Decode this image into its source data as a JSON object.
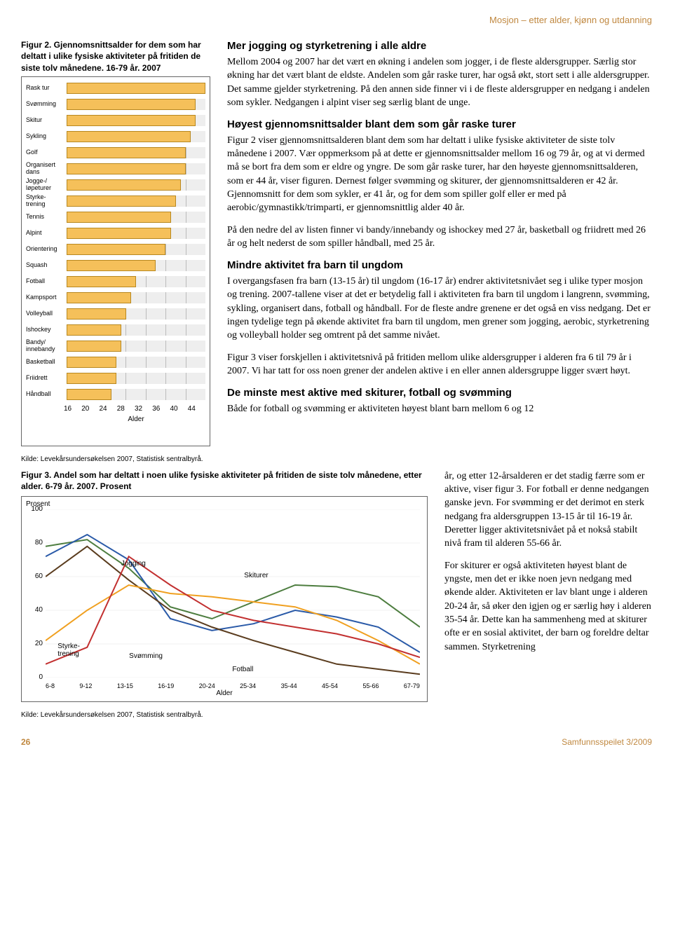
{
  "header": {
    "section_title": "Mosjon – etter alder, kjønn og utdanning"
  },
  "figure2": {
    "caption_bold": "Figur 2. Gjennomsnittsalder for dem som har deltatt i ulike fysiske aktiviteter på fritiden de siste tolv månedene. 16-79 år. 2007",
    "type": "bar-horizontal",
    "x_label": "Alder",
    "x_min": 16,
    "x_max": 44,
    "x_step": 4,
    "x_ticks": [
      "16",
      "20",
      "24",
      "28",
      "32",
      "36",
      "40",
      "44"
    ],
    "bar_color": "#f5c05a",
    "bar_border": "#b88820",
    "grid_color": "#bbbbbb",
    "categories": [
      {
        "label": "Rask tur",
        "value": 44
      },
      {
        "label": "Svømming",
        "value": 42
      },
      {
        "label": "Skitur",
        "value": 42
      },
      {
        "label": "Sykling",
        "value": 41
      },
      {
        "label": "Golf",
        "value": 40
      },
      {
        "label": "Organisert dans",
        "value": 40
      },
      {
        "label": "Jogge-/ løpeturer",
        "value": 39
      },
      {
        "label": "Styrke- trening",
        "value": 38
      },
      {
        "label": "Tennis",
        "value": 37
      },
      {
        "label": "Alpint",
        "value": 37
      },
      {
        "label": "Orientering",
        "value": 36
      },
      {
        "label": "Squash",
        "value": 34
      },
      {
        "label": "Fotball",
        "value": 30
      },
      {
        "label": "Kampsport",
        "value": 29
      },
      {
        "label": "Volleyball",
        "value": 28
      },
      {
        "label": "Ishockey",
        "value": 27
      },
      {
        "label": "Bandy/ innebandy",
        "value": 27
      },
      {
        "label": "Basketball",
        "value": 26
      },
      {
        "label": "Friidrett",
        "value": 26
      },
      {
        "label": "Håndball",
        "value": 25
      }
    ],
    "source": "Kilde: Levekårsundersøkelsen 2007, Statistisk sentralbyrå."
  },
  "body": {
    "s1_head": "Mer jogging og styrketrening i alle aldre",
    "s1_p": "Mellom 2004 og 2007 har det vært en økning i andelen som jogger, i de fleste aldersgrupper. Særlig stor økning har det vært blant de eldste. Andelen som går raske turer, har også økt, stort sett i alle aldersgrupper. Det samme gjelder styrketrening. På den annen side finner vi i de fleste aldersgrupper en nedgang i andelen som sykler. Nedgangen i alpint viser seg særlig blant de unge.",
    "s2_head": "Høyest gjennomsnittsalder blant dem som går raske turer",
    "s2_p1": "Figur 2 viser gjennomsnittsalderen blant dem som har deltatt i ulike fysiske aktiviteter de siste tolv månedene i 2007. Vær oppmerksom på at dette er gjennomsnittsalder mellom 16 og 79 år, og at vi dermed må se bort fra dem som er eldre og yngre. De som går raske turer, har den høyeste gjennomsnittsalderen, som er 44 år, viser figuren. Dernest følger svømming og skiturer, der gjennomsnittsalderen er 42 år. Gjennomsnitt for dem som sykler, er 41 år, og for dem som spiller golf eller er med på aerobic/gymnastikk/trimparti, er gjennomsnittlig alder 40 år.",
    "s2_p2": "På den nedre del av listen finner vi bandy/innebandy og ishockey med 27 år, basketball og friidrett med 26 år og helt nederst de som spiller håndball, med 25 år.",
    "s3_head": "Mindre aktivitet fra barn til ungdom",
    "s3_p1": "I overgangsfasen fra barn (13-15 år) til ungdom (16-17 år) endrer aktivitetsnivået seg i ulike typer mosjon og trening. 2007-tallene viser at det er betydelig fall i aktiviteten fra barn til ungdom i langrenn, svømming, sykling, organisert dans, fotball og håndball. For de fleste andre grenene er det også en viss nedgang. Det er ingen tydelige tegn på økende aktivitet fra barn til ungdom, men grener som jogging, aerobic, styrketrening og volleyball holder seg omtrent på det samme nivået.",
    "s3_p2": "Figur 3 viser forskjellen i aktivitetsnivå på fritiden mellom ulike aldersgrupper i alderen fra 6 til 79 år i 2007. Vi har tatt for oss noen grener der andelen aktive i en eller annen aldersgruppe ligger svært høyt.",
    "s4_head": "De minste mest aktive med skiturer, fotball og svømming",
    "s4_p1": "Både for fotball og svømming er aktiviteten høyest blant barn mellom 6 og 12",
    "s4_p2": "år, og etter 12-årsalderen er det stadig færre som er aktive, viser figur 3. For fotball er denne nedgangen ganske jevn. For svømming er det derimot en sterk nedgang fra aldersgruppen 13-15 år til 16-19 år. Deretter ligger aktivitetsnivået på et nokså stabilt nivå fram til alderen 55-66 år.",
    "s4_p3": "For skiturer er også aktiviteten høyest blant de yngste, men det er ikke noen jevn nedgang med økende alder. Aktiviteten er lav blant unge i alderen 20-24 år, så øker den igjen og er særlig høy i alderen 35-54 år. Dette kan ha sammenheng med at skiturer ofte er en sosial aktivitet, der barn og foreldre deltar sammen. Styrketrening"
  },
  "figure3": {
    "caption_bold": "Figur 3. Andel som har deltatt i noen ulike fysiske aktiviteter på fritiden de siste tolv månedene, etter alder. 6-79 år. 2007. Prosent",
    "type": "line",
    "y_title": "Prosent",
    "y_ticks": [
      0,
      20,
      40,
      60,
      80,
      100
    ],
    "x_label": "Alder",
    "x_categories": [
      "6-8",
      "9-12",
      "13-15",
      "16-19",
      "20-24",
      "25-34",
      "35-44",
      "45-54",
      "55-66",
      "67-79"
    ],
    "background_color": "#ffffff",
    "grid_color": "#cccccc",
    "series": [
      {
        "name": "Skiturer",
        "label": "Skiturer",
        "color": "#4d7d3f",
        "width": 2,
        "values": [
          78,
          82,
          65,
          42,
          35,
          45,
          55,
          54,
          48,
          30
        ]
      },
      {
        "name": "Svømming",
        "label": "Svømming",
        "color": "#2a5aa8",
        "width": 2,
        "values": [
          72,
          85,
          70,
          35,
          28,
          32,
          40,
          36,
          30,
          15
        ]
      },
      {
        "name": "Fotball",
        "label": "Fotball",
        "color": "#5a3c1e",
        "width": 2,
        "values": [
          60,
          78,
          58,
          40,
          30,
          22,
          15,
          8,
          5,
          2
        ]
      },
      {
        "name": "Jogging",
        "label": "Jogging",
        "color": "#f0a020",
        "width": 2,
        "values": [
          22,
          40,
          55,
          50,
          48,
          45,
          42,
          34,
          22,
          8
        ]
      },
      {
        "name": "Styrketrening",
        "label": "Styrke-\ntrening",
        "color": "#c23030",
        "width": 2,
        "values": [
          8,
          18,
          72,
          55,
          40,
          34,
          30,
          26,
          20,
          12
        ]
      }
    ],
    "series_label_positions": {
      "Jogging": {
        "left": "24%",
        "top": "30%"
      },
      "Skiturer": {
        "left": "55%",
        "top": "36%"
      },
      "Svømming": {
        "left": "26%",
        "top": "77%"
      },
      "Fotball": {
        "left": "52%",
        "top": "84%"
      },
      "Styrketrening": {
        "left": "8%",
        "top": "72%"
      }
    },
    "source": "Kilde: Levekårsundersøkelsen 2007, Statistisk sentralbyrå."
  },
  "footer": {
    "page": "26",
    "publication": "Samfunnsspeilet 3/2009"
  }
}
